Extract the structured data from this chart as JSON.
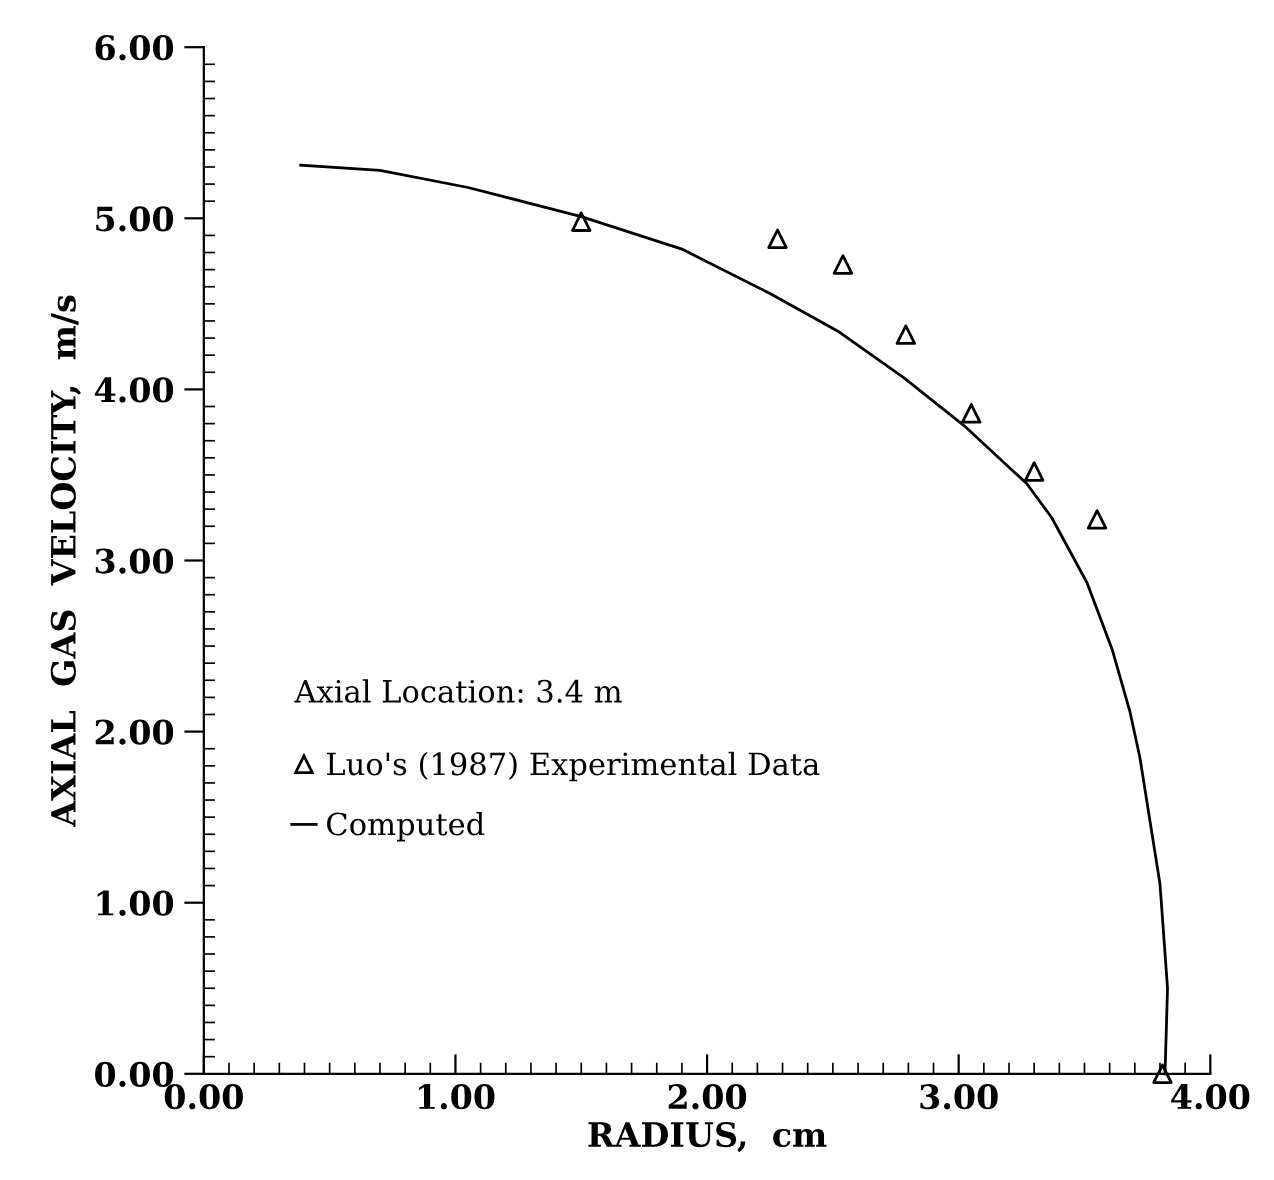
{
  "chart_data": {
    "type": "scatter",
    "xlabel": "RADIUS,  cm",
    "ylabel": "AXIAL  GAS  VELOCITY,  m/s",
    "annotations": [
      "Axial Location: 3.4 m"
    ],
    "series": [
      {
        "name": "Luo's (1987) Experimental Data",
        "marker": "triangle",
        "color": "#000000",
        "x": [
          1.5,
          2.28,
          2.54,
          2.79,
          3.05,
          3.3,
          3.55,
          3.81
        ],
        "values": [
          4.98,
          4.88,
          4.73,
          4.32,
          3.86,
          3.52,
          3.24,
          0.0
        ]
      },
      {
        "name": "Computed",
        "type": "line",
        "color": "#000000",
        "x": [
          0.385,
          0.7,
          1.05,
          1.5,
          1.9,
          2.25,
          2.52,
          2.78,
          3.02,
          3.27,
          3.37,
          3.51,
          3.61,
          3.68,
          3.72,
          3.8,
          3.83,
          3.82
        ],
        "values": [
          5.31,
          5.28,
          5.18,
          5.01,
          4.82,
          4.56,
          4.34,
          4.07,
          3.79,
          3.45,
          3.25,
          2.87,
          2.48,
          2.12,
          1.85,
          1.11,
          0.5,
          0.0
        ]
      }
    ],
    "xlim": [
      0,
      4
    ],
    "ylim": [
      0,
      6
    ],
    "xticks": [
      {
        "value": 0,
        "label": "0.00"
      },
      {
        "value": 1,
        "label": "1.00"
      },
      {
        "value": 2,
        "label": "2.00"
      },
      {
        "value": 3,
        "label": "3.00"
      },
      {
        "value": 4,
        "label": "4.00"
      }
    ],
    "yticks": [
      {
        "value": 0,
        "label": "0.00"
      },
      {
        "value": 1,
        "label": "1.00"
      },
      {
        "value": 2,
        "label": "2.00"
      },
      {
        "value": 3,
        "label": "3.00"
      },
      {
        "value": 4,
        "label": "4.00"
      },
      {
        "value": 5,
        "label": "5.00"
      },
      {
        "value": 6,
        "label": "6.00"
      }
    ],
    "grid": false,
    "legend": "left"
  }
}
